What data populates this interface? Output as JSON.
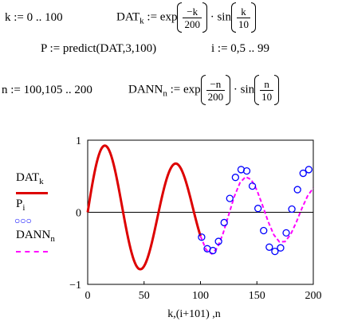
{
  "equations": {
    "k_def": "k := 0 .. 100",
    "dat_lhs": "DAT",
    "dat_sub": "k",
    "dat_assign": ":= exp",
    "dat_num": "−k",
    "dat_den": "200",
    "dot": "·",
    "sin": "sin",
    "k_num": "k",
    "k_den": "10",
    "p_def": "P := predict(DAT,3,100)",
    "i_def": "i := 0,5 .. 99",
    "n_def": "n := 100,105 .. 200",
    "dann_lhs": "DANN",
    "dann_sub": "n",
    "dann_assign": ":= exp",
    "dann_num": "−n",
    "dann_den": "200",
    "n_num": "n",
    "n_den": "10"
  },
  "legend": {
    "dat_label": "DAT",
    "dat_sub": "k",
    "p_label": "P",
    "p_sub": "i",
    "p_marker": "○○○",
    "dann_label": "DANN",
    "dann_sub": "n"
  },
  "chart_data": {
    "type": "line",
    "xlabel": "k,(i+101) ,n",
    "xlim": [
      0,
      200
    ],
    "ylim": [
      -1,
      1
    ],
    "x_ticks": [
      "0",
      "50",
      "100",
      "150",
      "200"
    ],
    "y_ticks": [
      "1",
      "0",
      "−1"
    ],
    "colors": {
      "dat": "#dd0000",
      "p": "#0000ff",
      "dann": "#ff00ff"
    },
    "series": [
      {
        "name": "DAT",
        "style": "solid-line",
        "function": "exp(-k/200)*sin(k/10)",
        "x_range": [
          0,
          100
        ],
        "step": 1
      },
      {
        "name": "P",
        "style": "open-circles",
        "x_start": 101,
        "x_step": 5,
        "values": [
          -0.345,
          -0.506,
          -0.531,
          -0.404,
          -0.143,
          0.192,
          0.484,
          0.592,
          0.573,
          0.363,
          0.053,
          -0.254,
          -0.484,
          -0.543,
          -0.494,
          -0.286,
          0.044,
          0.314,
          0.541,
          0.592
        ]
      },
      {
        "name": "DANN",
        "style": "dashed-line",
        "function": "exp(-n/200)*sin(n/10)",
        "x_range": [
          100,
          200
        ],
        "step": 5
      }
    ]
  }
}
